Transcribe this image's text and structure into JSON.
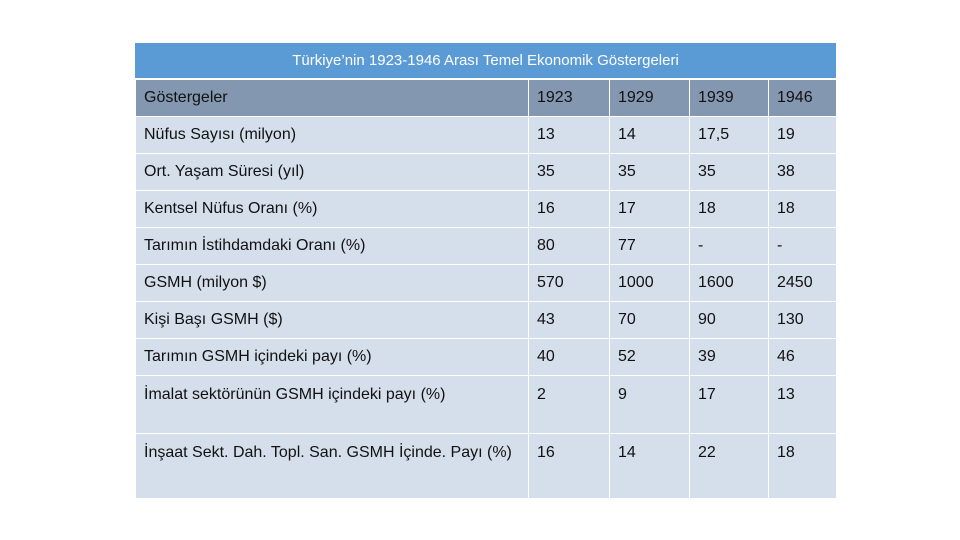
{
  "table": {
    "title": "Türkiye’nin 1923-1946 Arası Temel Ekonomik Göstergeleri",
    "header": [
      "Göstergeler",
      "1923",
      "1929",
      "1939",
      "1946"
    ],
    "rows": [
      [
        "Nüfus Sayısı (milyon)",
        "13",
        "14",
        "17,5",
        "19"
      ],
      [
        "Ort. Yaşam Süresi (yıl)",
        "35",
        "35",
        "35",
        "38"
      ],
      [
        "Kentsel Nüfus Oranı (%)",
        "16",
        "17",
        "18",
        "18"
      ],
      [
        "Tarımın İstihdamdaki Oranı (%)",
        "80",
        "77",
        "-",
        "-"
      ],
      [
        "GSMH (milyon $)",
        "570",
        "1000",
        "1600",
        "2450"
      ],
      [
        "Kişi Başı GSMH ($)",
        "43",
        "70",
        "90",
        "130"
      ],
      [
        "Tarımın GSMH içindeki payı (%)",
        "40",
        "52",
        "39",
        "46"
      ],
      [
        "İmalat sektörünün GSMH içindeki payı (%)",
        "2",
        "9",
        "17",
        "13"
      ],
      [
        "İnşaat Sekt. Dah. Topl. San. GSMH İçinde. Payı (%)",
        "16",
        "14",
        "22",
        "18"
      ]
    ]
  }
}
